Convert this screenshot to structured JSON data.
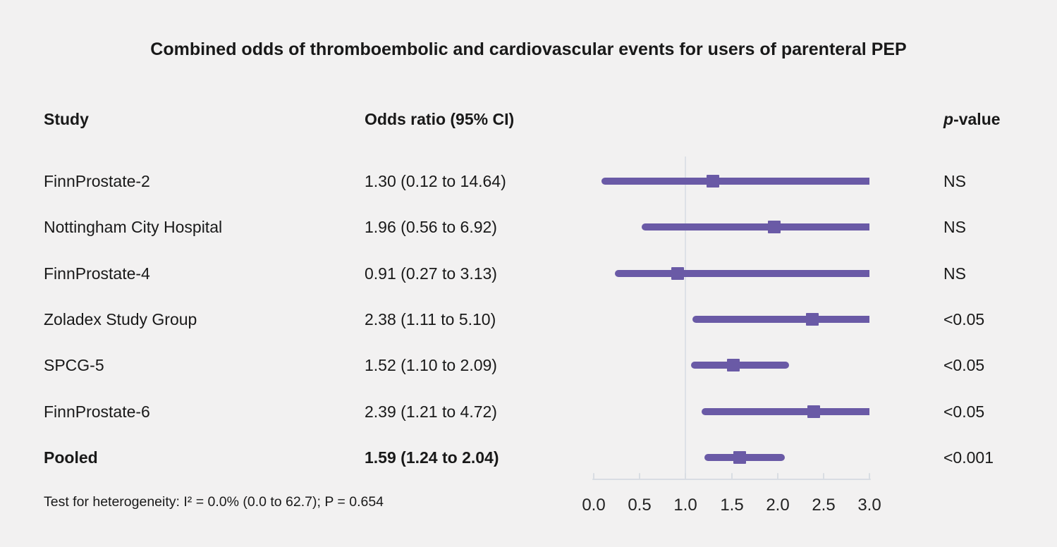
{
  "title": "Combined odds of thromboembolic and cardiovascular events for users of parenteral PEP",
  "columns": {
    "study": "Study",
    "odds_ratio": "Odds ratio (95% CI)",
    "pvalue_italic": "p",
    "pvalue_rest": "-value"
  },
  "footer": "Test for heterogeneity: I² = 0.0% (0.0 to 62.7); P = 0.654",
  "colors": {
    "marker_purple": "#6a5aa6",
    "reference_line": "#dde1e7",
    "axis": "#d9dde3",
    "background": "#f2f1f1",
    "text": "#191919"
  },
  "chart_data": {
    "type": "forest",
    "title": "Combined odds of thromboembolic and cardiovascular events for users of parenteral PEP",
    "xlabel": "",
    "ylabel": "",
    "xlim": [
      0,
      3
    ],
    "x_tick_labels": [
      "0.0",
      "0.5",
      "1.0",
      "1.5",
      "2.0",
      "2.5",
      "3.0"
    ],
    "x_tick_values": [
      0,
      0.5,
      1,
      1.5,
      2,
      2.5,
      3
    ],
    "reference_line": 1.0,
    "grid": false,
    "studies": [
      {
        "name": "FinnProstate-2",
        "or": 1.3,
        "ci_low": 0.12,
        "ci_high": 14.64,
        "or_text": "1.30 (0.12 to 14.64)",
        "p": "NS",
        "bold": false
      },
      {
        "name": "Nottingham City Hospital",
        "or": 1.96,
        "ci_low": 0.56,
        "ci_high": 6.92,
        "or_text": "1.96 (0.56 to 6.92)",
        "p": "NS",
        "bold": false
      },
      {
        "name": "FinnProstate-4",
        "or": 0.91,
        "ci_low": 0.27,
        "ci_high": 3.13,
        "or_text": "0.91 (0.27 to 3.13)",
        "p": "NS",
        "bold": false
      },
      {
        "name": "Zoladex Study Group",
        "or": 2.38,
        "ci_low": 1.11,
        "ci_high": 5.1,
        "or_text": "2.38 (1.11 to 5.10)",
        "p": "<0.05",
        "bold": false
      },
      {
        "name": "SPCG-5",
        "or": 1.52,
        "ci_low": 1.1,
        "ci_high": 2.09,
        "or_text": "1.52 (1.10 to 2.09)",
        "p": "<0.05",
        "bold": false
      },
      {
        "name": "FinnProstate-6",
        "or": 2.39,
        "ci_low": 1.21,
        "ci_high": 4.72,
        "or_text": "2.39 (1.21 to 4.72)",
        "p": "<0.05",
        "bold": false
      },
      {
        "name": "Pooled",
        "or": 1.59,
        "ci_low": 1.24,
        "ci_high": 2.04,
        "or_text": "1.59 (1.24 to 2.04)",
        "p": "<0.001",
        "bold": true
      }
    ]
  }
}
